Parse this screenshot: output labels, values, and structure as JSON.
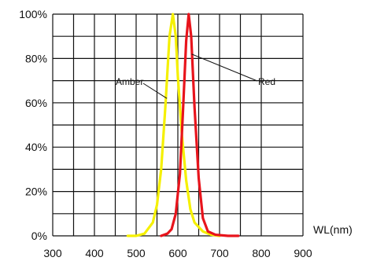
{
  "chart_data": {
    "type": "line",
    "xlabel": "WL(nm)",
    "ylabel": "",
    "xlim": [
      300,
      900
    ],
    "ylim": [
      0,
      100
    ],
    "x_ticks": [
      300,
      400,
      500,
      600,
      700,
      800,
      900
    ],
    "y_ticks": [
      0,
      20,
      40,
      60,
      80,
      100
    ],
    "y_tick_labels": [
      "0%",
      "20%",
      "40%",
      "60%",
      "80%",
      "100%"
    ],
    "grid": true,
    "series": [
      {
        "name": "Amber",
        "color": "#f5f000",
        "points": [
          [
            480,
            0
          ],
          [
            500,
            0
          ],
          [
            520,
            1
          ],
          [
            540,
            6
          ],
          [
            550,
            14
          ],
          [
            560,
            30
          ],
          [
            570,
            58
          ],
          [
            580,
            90
          ],
          [
            588,
            100
          ],
          [
            595,
            90
          ],
          [
            600,
            72
          ],
          [
            610,
            45
          ],
          [
            620,
            25
          ],
          [
            630,
            12
          ],
          [
            640,
            6
          ],
          [
            660,
            2
          ],
          [
            680,
            0.5
          ],
          [
            700,
            0
          ]
        ]
      },
      {
        "name": "Red",
        "color": "#e8141c",
        "points": [
          [
            560,
            0
          ],
          [
            575,
            1
          ],
          [
            585,
            3
          ],
          [
            595,
            10
          ],
          [
            605,
            28
          ],
          [
            612,
            55
          ],
          [
            620,
            88
          ],
          [
            626,
            100
          ],
          [
            632,
            90
          ],
          [
            640,
            58
          ],
          [
            650,
            26
          ],
          [
            660,
            8
          ],
          [
            672,
            2
          ],
          [
            690,
            0.5
          ],
          [
            720,
            0
          ],
          [
            745,
            0
          ]
        ]
      }
    ],
    "annotations": [
      {
        "text": "Amber",
        "series": "Amber"
      },
      {
        "text": "Red",
        "series": "Red"
      }
    ]
  }
}
